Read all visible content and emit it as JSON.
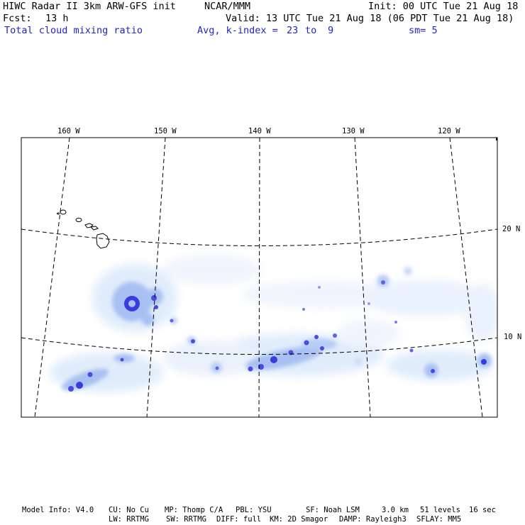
{
  "header": {
    "model_title": "HIWC Radar II 3km ARW-GFS init",
    "org": "NCAR/MMM",
    "init": "Init: 00 UTC Tue 21 Aug 18",
    "fcst_label": "Fcst:",
    "fcst_value": "13 h",
    "valid": "Valid: 13 UTC Tue 21 Aug 18 (06 PDT Tue 21 Aug 18)",
    "field_name": "Total cloud mixing ratio",
    "avg_label": "Avg, k-index =",
    "k_from": "23",
    "k_to_word": "to",
    "k_to": "9",
    "sm": "sm= 5"
  },
  "map": {
    "lon_labels": [
      "160 W",
      "150 W",
      "140 W",
      "130 W",
      "120 W"
    ],
    "lat_labels": [
      "20 N",
      "10 N"
    ],
    "colors": {
      "frame": "#000000",
      "cloud_light": "#dce9fb",
      "cloud_mid": "#a9c1f2",
      "cloud_dark": "#3a3ae0"
    }
  },
  "footer": {
    "line1": [
      "Model Info: V4.0",
      "CU: No Cu",
      "MP: Thomp C/A",
      "PBL: YSU",
      "SF: Noah LSM",
      "3.0 km",
      "51 levels",
      "16 sec"
    ],
    "line2": [
      "LW: RRTMG",
      "SW: RRTMG",
      "DIFF: full",
      "KM: 2D Smagor",
      "DAMP: Rayleigh3",
      "SFLAY: MM5"
    ]
  }
}
